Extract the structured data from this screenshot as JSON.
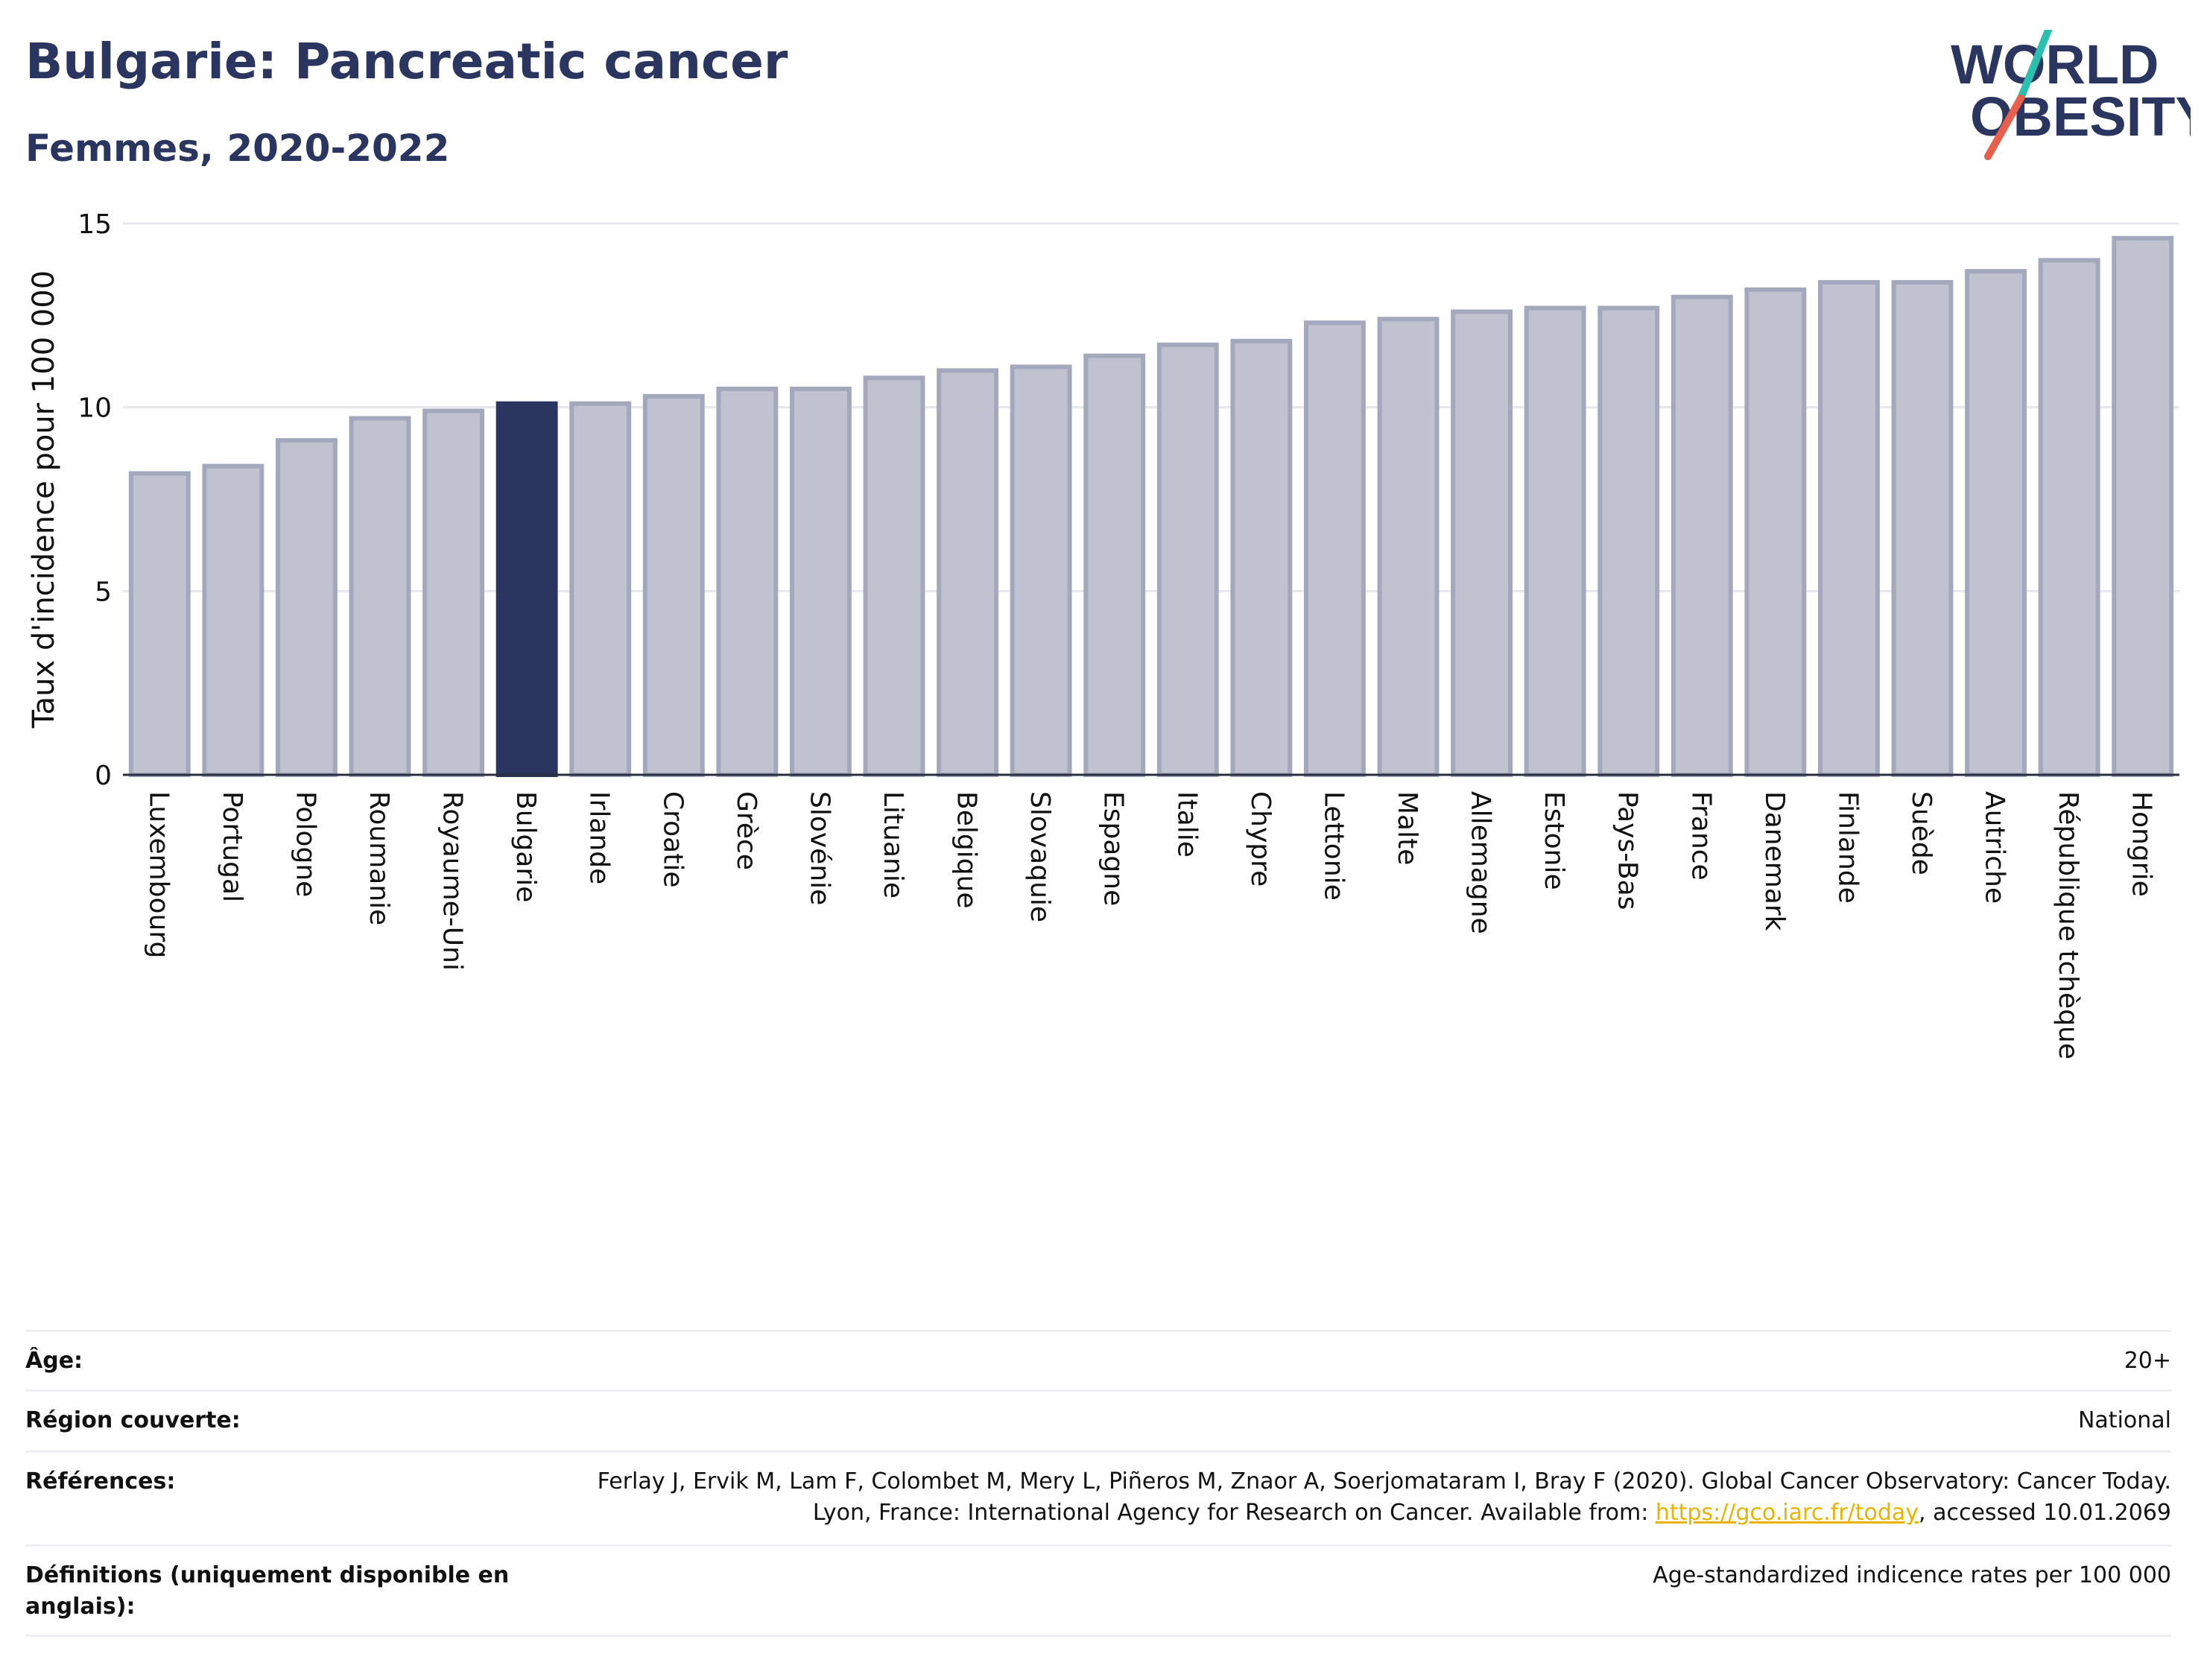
{
  "header": {
    "title": "Bulgarie: Pancreatic cancer",
    "subtitle": "Femmes, 2020-2022"
  },
  "logo": {
    "line1": "WORLD",
    "line2": "OBESITY",
    "colors": {
      "text": "#2a3560",
      "slash_teal": "#2bbfb0",
      "slash_red": "#e8604c"
    }
  },
  "colors": {
    "bar_default": "#c0c3cf",
    "bar_border": "#a3a8bd",
    "bar_highlight": "#2a3560",
    "axis_text": "#111111",
    "grid": "#e6e8ee"
  },
  "chart_data": {
    "type": "bar",
    "ylabel": "Taux d'incidence pour 100 000",
    "xlabel": "",
    "ylim": [
      0,
      15
    ],
    "yticks": [
      0,
      5,
      10,
      15
    ],
    "grid": true,
    "highlight": "Bulgarie",
    "categories": [
      "Luxembourg",
      "Portugal",
      "Pologne",
      "Roumanie",
      "Royaume-Uni",
      "Bulgarie",
      "Irlande",
      "Croatie",
      "Grèce",
      "Slovénie",
      "Lituanie",
      "Belgique",
      "Slovaquie",
      "Espagne",
      "Italie",
      "Chypre",
      "Lettonie",
      "Malte",
      "Allemagne",
      "Estonie",
      "Pays-Bas",
      "France",
      "Danemark",
      "Finlande",
      "Suède",
      "Autriche",
      "République tchèque",
      "Hongrie"
    ],
    "values": [
      8.2,
      8.4,
      9.1,
      9.7,
      9.9,
      10.1,
      10.1,
      10.3,
      10.5,
      10.5,
      10.8,
      11.0,
      11.1,
      11.4,
      11.7,
      11.8,
      12.3,
      12.4,
      12.6,
      12.7,
      12.7,
      13.0,
      13.2,
      13.4,
      13.4,
      13.7,
      14.0,
      14.6
    ]
  },
  "meta": {
    "rows": [
      {
        "label": "Âge:",
        "value": "20+"
      },
      {
        "label": "Région couverte:",
        "value": "National"
      },
      {
        "label": "Références:",
        "value_pre": "Ferlay J, Ervik M, Lam F, Colombet M, Mery L, Piñeros M, Znaor A, Soerjomataram I, Bray F (2020). Global Cancer Observatory: Cancer Today. Lyon, France: International Agency for Research on Cancer. Available from: ",
        "link": "https://gco.iarc.fr/today",
        "value_post": ", accessed 10.01.2069"
      },
      {
        "label": "Définitions (uniquement disponible en anglais):",
        "value": "Age-standardized indicence rates per 100 000"
      }
    ]
  }
}
